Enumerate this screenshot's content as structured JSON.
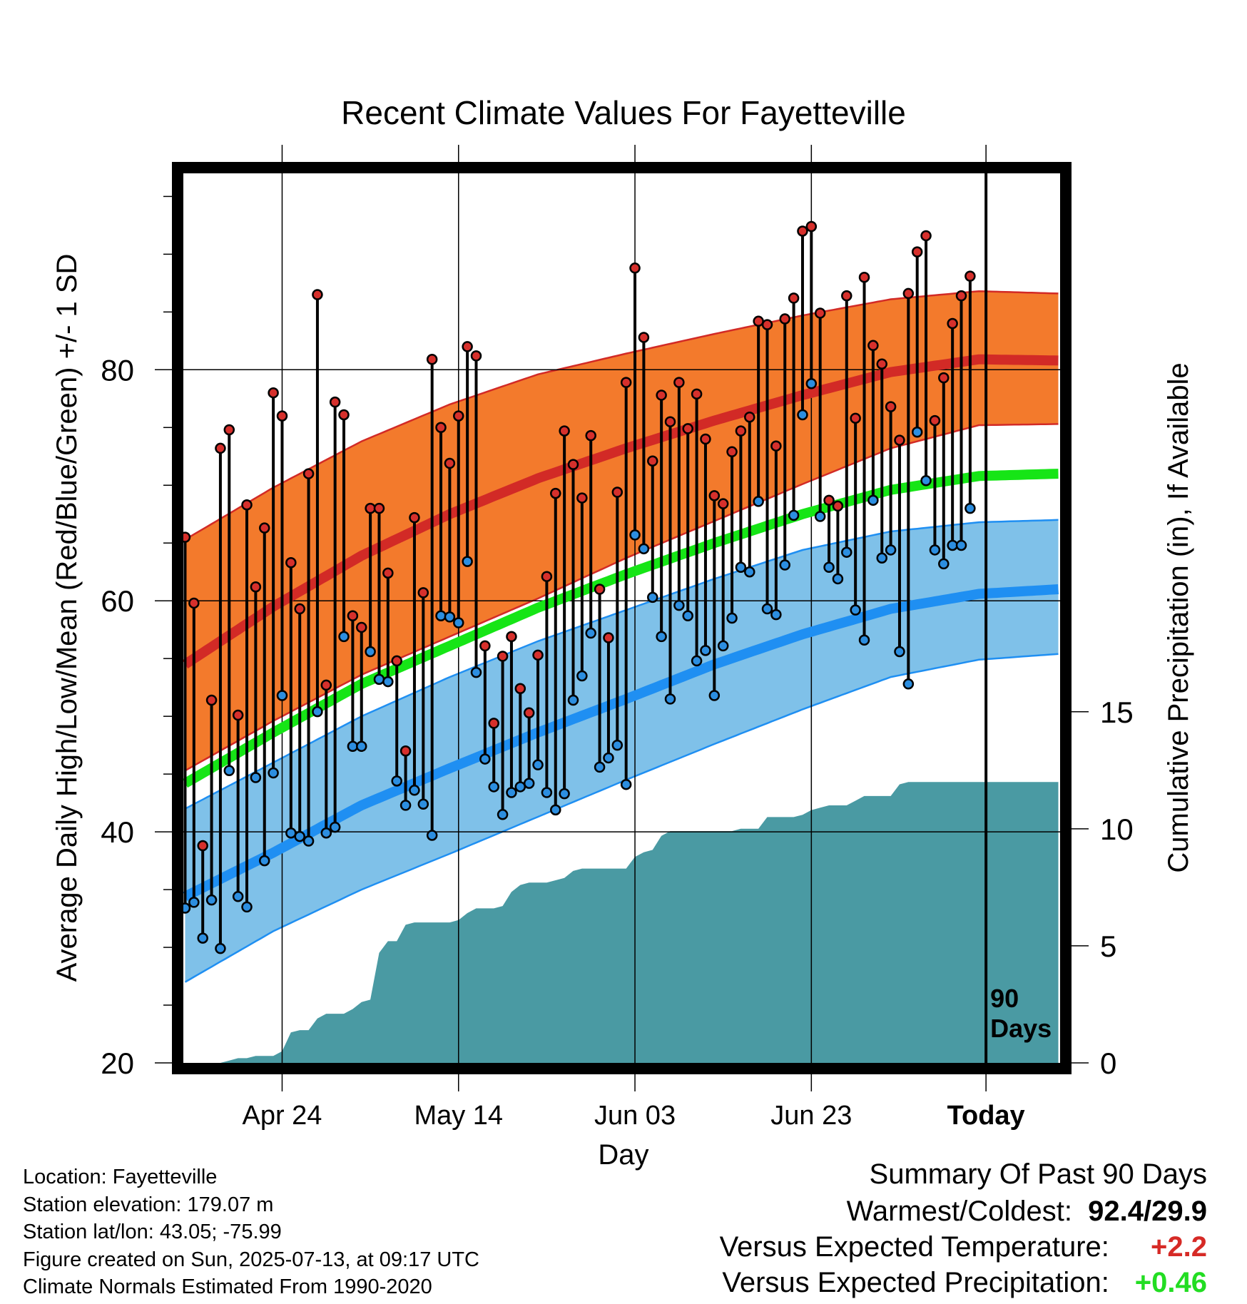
{
  "chart_data": {
    "type": "line",
    "title": "Recent Climate Values For Fayetteville",
    "xlabel": "Day",
    "ylabel_left": "Average Daily High/Low/Mean (Red/Blue/Green) +/- 1 SD",
    "ylabel_right": "Cumulative Precipitation (in), If Available",
    "ylim": [
      20,
      97
    ],
    "y_ticks": [
      40,
      60,
      80
    ],
    "y_bottom_label": "20",
    "precip_ylim": [
      0,
      38
    ],
    "precip_ticks": [
      "0",
      "5",
      "10",
      "15"
    ],
    "x_ticks": [
      {
        "day": 11,
        "label": "Apr 24"
      },
      {
        "day": 31,
        "label": "May 14"
      },
      {
        "day": 51,
        "label": "Jun 03"
      },
      {
        "day": 71,
        "label": "Jun 23"
      },
      {
        "day": 90.8,
        "label": "Today"
      }
    ],
    "xlim": [
      -0.2,
      99.2
    ],
    "today_marker_day": 90.8,
    "today_marker_text": [
      "90",
      "Days"
    ],
    "normal_curves": {
      "days": [
        0,
        10,
        20,
        30,
        40,
        50,
        60,
        70,
        80,
        90,
        99
      ],
      "high_mean": [
        54.5,
        59.5,
        63.9,
        67.5,
        70.6,
        73.2,
        75.6,
        77.8,
        79.8,
        80.9,
        80.8
      ],
      "high_upper": [
        65.3,
        69.8,
        73.8,
        77.0,
        79.6,
        81.4,
        83.1,
        84.7,
        86.1,
        86.8,
        86.6
      ],
      "high_lower": [
        45.3,
        49.6,
        53.6,
        56.9,
        60.2,
        63.7,
        66.9,
        70.1,
        73.2,
        75.2,
        75.3
      ],
      "mean_mean": [
        44.2,
        48.6,
        52.8,
        56.1,
        59.4,
        62.3,
        65.0,
        67.5,
        69.6,
        70.8,
        71.0
      ],
      "low_mean": [
        34.4,
        38.2,
        42.3,
        45.5,
        48.6,
        51.5,
        54.5,
        57.1,
        59.3,
        60.6,
        61.0
      ],
      "low_upper": [
        42.0,
        46.0,
        50.0,
        53.4,
        56.5,
        59.2,
        61.9,
        64.4,
        66.0,
        66.8,
        67.0
      ],
      "low_lower": [
        27.0,
        31.4,
        35.0,
        38.1,
        41.3,
        44.5,
        47.6,
        50.6,
        53.4,
        54.9,
        55.4
      ]
    },
    "highs": [
      65.5,
      59.8,
      38.8,
      51.4,
      73.2,
      74.8,
      50.1,
      68.3,
      61.2,
      66.3,
      78.0,
      76.0,
      63.3,
      59.3,
      71.0,
      86.5,
      52.7,
      77.2,
      76.1,
      58.7,
      57.7,
      68.0,
      68.0,
      62.4,
      54.8,
      47.0,
      67.2,
      60.7,
      80.9,
      75.0,
      71.9,
      76.0,
      82.0,
      81.2,
      56.1,
      49.4,
      55.2,
      56.9,
      52.4,
      50.3,
      55.3,
      62.1,
      69.3,
      74.7,
      71.8,
      68.9,
      74.3,
      61.0,
      56.8,
      69.4,
      78.9,
      88.8,
      82.8,
      72.1,
      77.8,
      75.5,
      78.9,
      74.9,
      77.9,
      74.0,
      69.1,
      68.4,
      72.9,
      74.7,
      75.9,
      84.2,
      83.9,
      73.4,
      84.4,
      86.2,
      92.0,
      92.4,
      84.9,
      68.7,
      68.2,
      86.4,
      75.8,
      88.0,
      82.1,
      80.5,
      76.8,
      73.9,
      86.6,
      90.2,
      91.6,
      75.6,
      79.3,
      84.0,
      86.4,
      88.1
    ],
    "lows": [
      33.4,
      33.9,
      30.8,
      34.1,
      29.9,
      45.3,
      34.4,
      33.5,
      44.7,
      37.5,
      45.1,
      51.8,
      39.9,
      39.6,
      39.2,
      50.4,
      39.9,
      40.4,
      56.9,
      47.4,
      47.4,
      55.6,
      53.2,
      53.0,
      44.4,
      42.3,
      43.6,
      42.4,
      39.7,
      58.7,
      58.6,
      58.1,
      63.4,
      53.8,
      46.3,
      43.9,
      41.5,
      43.4,
      43.9,
      44.2,
      45.8,
      43.4,
      41.9,
      43.3,
      51.4,
      53.5,
      57.2,
      45.6,
      46.4,
      47.5,
      44.1,
      65.7,
      64.5,
      60.3,
      56.9,
      51.5,
      59.6,
      58.7,
      54.8,
      55.7,
      51.8,
      56.1,
      58.5,
      62.9,
      62.5,
      68.6,
      59.3,
      58.8,
      63.1,
      67.4,
      76.1,
      78.8,
      67.3,
      62.9,
      61.9,
      64.2,
      59.2,
      56.6,
      68.7,
      63.7,
      64.4,
      55.6,
      52.8,
      74.6,
      70.4,
      64.4,
      63.2,
      64.8,
      64.8,
      68.0
    ],
    "precip": [
      0,
      0,
      0,
      0,
      0,
      0.1,
      0.2,
      0.2,
      0.3,
      0.3,
      0.3,
      0.5,
      1.3,
      1.4,
      1.4,
      1.9,
      2.1,
      2.1,
      2.1,
      2.3,
      2.6,
      2.7,
      4.7,
      5.2,
      5.2,
      5.9,
      6.0,
      6.0,
      6.0,
      6.0,
      6.0,
      6.1,
      6.4,
      6.6,
      6.6,
      6.6,
      6.7,
      7.3,
      7.6,
      7.7,
      7.7,
      7.7,
      7.8,
      7.9,
      8.2,
      8.3,
      8.3,
      8.3,
      8.3,
      8.3,
      8.3,
      8.8,
      9.0,
      9.1,
      9.7,
      9.9,
      9.9,
      9.9,
      9.9,
      9.9,
      9.9,
      9.9,
      9.9,
      10.0,
      10.0,
      10.0,
      10.5,
      10.5,
      10.5,
      10.5,
      10.6,
      10.8,
      10.9,
      11.0,
      11.0,
      11.0,
      11.2,
      11.4,
      11.4,
      11.4,
      11.4,
      11.9,
      12.0,
      12.0,
      12.0,
      12.0,
      12.0,
      12.0,
      12.0,
      12.0,
      12.0,
      12.0,
      12.0,
      12.0,
      12.0,
      12.0,
      12.0,
      12.0,
      12.0,
      12.0
    ],
    "colors": {
      "high_band": "#f37a2c",
      "high_line": "#d22a26",
      "mean_line": "#16e516",
      "low_band": "#7fc1e9",
      "low_line": "#1f8ff2",
      "precip_fill": "#4a9aa3",
      "high_dot": "#d6302c",
      "low_dot": "#2c8ee0"
    }
  },
  "info": [
    "Location: Fayetteville",
    "Station elevation: 179.07 m",
    "Station lat/lon: 43.05; -75.99",
    "Figure created on Sun, 2025-07-13, at 09:17 UTC",
    "Climate Normals Estimated From 1990-2020"
  ],
  "summary": {
    "heading": "Summary Of Past 90 Days",
    "warmest_label": "Warmest/Coldest:",
    "warmest_value": "92.4/29.9",
    "temp_label": "Versus Expected Temperature:",
    "temp_value": "+2.2",
    "temp_color": "#d62a26",
    "precip_label": "Versus Expected Precipitation:",
    "precip_value": "+0.46",
    "precip_color": "#22dd22"
  }
}
